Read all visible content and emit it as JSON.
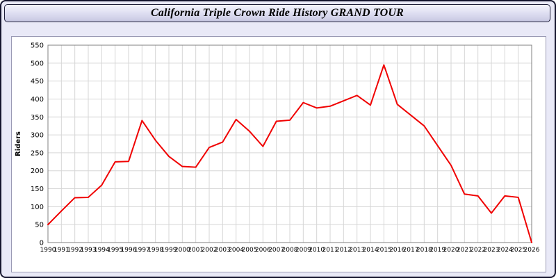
{
  "header": {
    "title": "California Triple Crown Ride History GRAND TOUR"
  },
  "chart_data": {
    "type": "line",
    "title": "California Triple Crown Ride History GRAND TOUR",
    "xlabel": "",
    "ylabel": "Riders",
    "ylim": [
      0,
      550
    ],
    "ytick_step": 50,
    "yticks": [
      0,
      50,
      100,
      150,
      200,
      250,
      300,
      350,
      400,
      450,
      500,
      550
    ],
    "grid": true,
    "legend": "none",
    "line_color": "#f00000",
    "grid_color": "#d6d6d6",
    "plot_bg": "#ffffff",
    "categories": [
      "1990",
      "1991",
      "1992",
      "1993",
      "1994",
      "1995",
      "1996",
      "1997",
      "1998",
      "1999",
      "2000",
      "2001",
      "2002",
      "2003",
      "2004",
      "2005",
      "2006",
      "2007",
      "2008",
      "2009",
      "2010",
      "2011",
      "2012",
      "2013",
      "2014",
      "2015",
      "2016",
      "2017",
      "2018",
      "2019",
      "2020",
      "2021",
      "2022",
      "2023",
      "2024",
      "2025",
      "2026"
    ],
    "values": [
      50,
      88,
      125,
      126,
      160,
      225,
      226,
      340,
      285,
      240,
      212,
      210,
      265,
      280,
      343,
      310,
      268,
      338,
      341,
      390,
      375,
      380,
      395,
      410,
      383,
      495,
      385,
      355,
      325,
      270,
      215,
      135,
      130,
      82,
      130,
      126,
      0
    ]
  }
}
